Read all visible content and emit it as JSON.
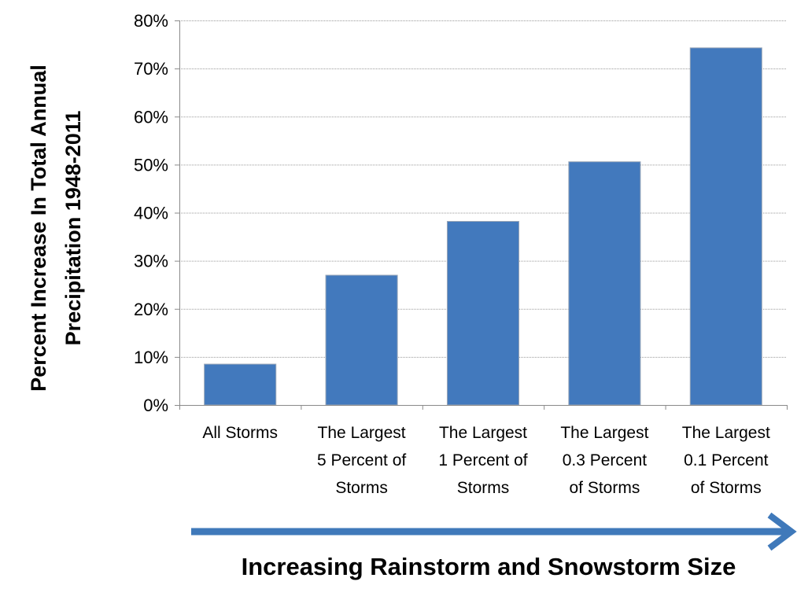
{
  "chart_data": {
    "type": "bar",
    "categories": [
      [
        "All Storms"
      ],
      [
        "The Largest",
        "5 Percent of",
        "Storms"
      ],
      [
        "The Largest",
        "1 Percent of",
        "Storms"
      ],
      [
        "The Largest",
        "0.3 Percent",
        "of Storms"
      ],
      [
        "The Largest",
        "0.1 Percent",
        "of Storms"
      ]
    ],
    "values": [
      8.5,
      27,
      38.2,
      50.6,
      74.3
    ],
    "ylabel_lines": [
      "Percent Increase In Total Annual",
      "Precipitation 1948-2011"
    ],
    "ylim": [
      0,
      80
    ],
    "yticks": [
      0,
      10,
      20,
      30,
      40,
      50,
      60,
      70,
      80
    ],
    "ytick_labels": [
      "0%",
      "10%",
      "20%",
      "30%",
      "40%",
      "50%",
      "60%",
      "70%",
      "80%"
    ],
    "xlabel": "Increasing Rainstorm and Snowstorm Size",
    "grid": true,
    "bar_color": "#4279bd",
    "bar_border_color": "#9aa7b8",
    "arrow_color": "#3f79ba",
    "gridline_color": "#9a9a9a"
  }
}
